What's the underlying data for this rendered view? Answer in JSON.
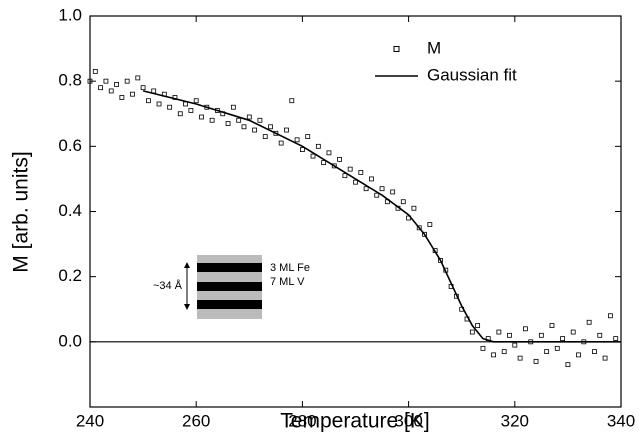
{
  "chart_data": {
    "type": "scatter",
    "x_label": "Temperature [K]",
    "y_label": "M [arb. units]",
    "xlim": [
      240,
      340
    ],
    "xticks": [
      240,
      260,
      280,
      300,
      320,
      340
    ],
    "ylim": [
      -0.2,
      1.0
    ],
    "yticks": [
      {
        "value": 0,
        "label": "0.0"
      },
      0.2,
      0.4,
      0.6,
      0.8,
      {
        "value": 1,
        "label": "1.0"
      }
    ],
    "hline": 0,
    "legend": "upper right",
    "series": [
      {
        "name": "M",
        "kind": "markers",
        "color": "#000000",
        "x": [
          240,
          241,
          242,
          243,
          244,
          245,
          246,
          247,
          248,
          249,
          250,
          251,
          252,
          253,
          254,
          255,
          256,
          257,
          258,
          259,
          260,
          261,
          262,
          263,
          264,
          265,
          266,
          267,
          268,
          269,
          270,
          271,
          272,
          273,
          274,
          275,
          276,
          277,
          278,
          279,
          280,
          281,
          282,
          283,
          284,
          285,
          286,
          287,
          288,
          289,
          290,
          291,
          292,
          293,
          294,
          295,
          296,
          297,
          298,
          299,
          300,
          301,
          302,
          303,
          304,
          305,
          306,
          307,
          308,
          309,
          310,
          311,
          312,
          313,
          314,
          315,
          316,
          317,
          318,
          319,
          320,
          321,
          322,
          323,
          324,
          325,
          326,
          327,
          328,
          329,
          330,
          331,
          332,
          333,
          334,
          335,
          336,
          337,
          338,
          339
        ],
        "values": [
          0.8,
          0.83,
          0.78,
          0.8,
          0.77,
          0.79,
          0.75,
          0.8,
          0.76,
          0.81,
          0.78,
          0.74,
          0.77,
          0.73,
          0.76,
          0.72,
          0.75,
          0.7,
          0.73,
          0.71,
          0.74,
          0.69,
          0.72,
          0.68,
          0.71,
          0.7,
          0.67,
          0.72,
          0.68,
          0.66,
          0.69,
          0.65,
          0.68,
          0.63,
          0.66,
          0.64,
          0.61,
          0.65,
          0.74,
          0.62,
          0.59,
          0.63,
          0.57,
          0.6,
          0.55,
          0.58,
          0.54,
          0.56,
          0.51,
          0.53,
          0.49,
          0.52,
          0.47,
          0.5,
          0.45,
          0.47,
          0.43,
          0.46,
          0.41,
          0.43,
          0.38,
          0.41,
          0.35,
          0.33,
          0.36,
          0.28,
          0.25,
          0.22,
          0.17,
          0.14,
          0.1,
          0.07,
          0.03,
          0.05,
          -0.02,
          0.01,
          -0.04,
          0.03,
          -0.03,
          0.02,
          -0.01,
          -0.05,
          0.04,
          0.0,
          -0.06,
          0.02,
          -0.03,
          0.05,
          -0.02,
          0.01,
          -0.07,
          0.03,
          -0.04,
          0.0,
          0.06,
          -0.03,
          0.02,
          -0.05,
          0.08,
          0.01
        ]
      },
      {
        "name": "Gaussian fit",
        "kind": "line",
        "color": "#000000",
        "x": [
          250,
          260,
          270,
          280,
          290,
          295,
          300,
          303,
          306,
          308,
          310,
          312,
          314,
          316,
          320,
          340
        ],
        "values": [
          0.77,
          0.73,
          0.68,
          0.6,
          0.5,
          0.45,
          0.39,
          0.33,
          0.25,
          0.18,
          0.11,
          0.05,
          0.01,
          0.0,
          0.0,
          0.0
        ]
      }
    ],
    "annotations": [
      "~34 Å",
      "3 ML Fe",
      "7 ML V"
    ]
  }
}
